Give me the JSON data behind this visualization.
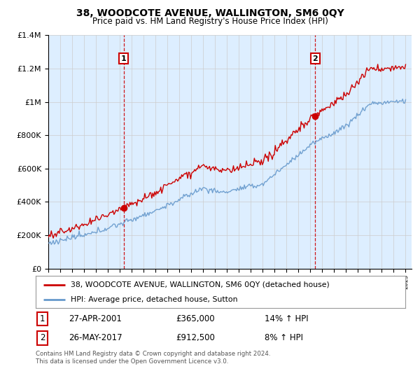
{
  "title": "38, WOODCOTE AVENUE, WALLINGTON, SM6 0QY",
  "subtitle": "Price paid vs. HM Land Registry's House Price Index (HPI)",
  "legend_line1": "38, WOODCOTE AVENUE, WALLINGTON, SM6 0QY (detached house)",
  "legend_line2": "HPI: Average price, detached house, Sutton",
  "annotation1_label": "1",
  "annotation1_date": "27-APR-2001",
  "annotation1_price": "£365,000",
  "annotation1_hpi": "14% ↑ HPI",
  "annotation2_label": "2",
  "annotation2_date": "26-MAY-2017",
  "annotation2_price": "£912,500",
  "annotation2_hpi": "8% ↑ HPI",
  "footer": "Contains HM Land Registry data © Crown copyright and database right 2024.\nThis data is licensed under the Open Government Licence v3.0.",
  "sale1_year": 2001.32,
  "sale1_price": 365000,
  "sale2_year": 2017.4,
  "sale2_price": 912500,
  "red_color": "#cc0000",
  "blue_color": "#6699cc",
  "chart_bg": "#ddeeff",
  "background_color": "#ffffff",
  "grid_color": "#cccccc",
  "ylim_max": 1400000,
  "xlim_min": 1995,
  "xlim_max": 2025.5
}
